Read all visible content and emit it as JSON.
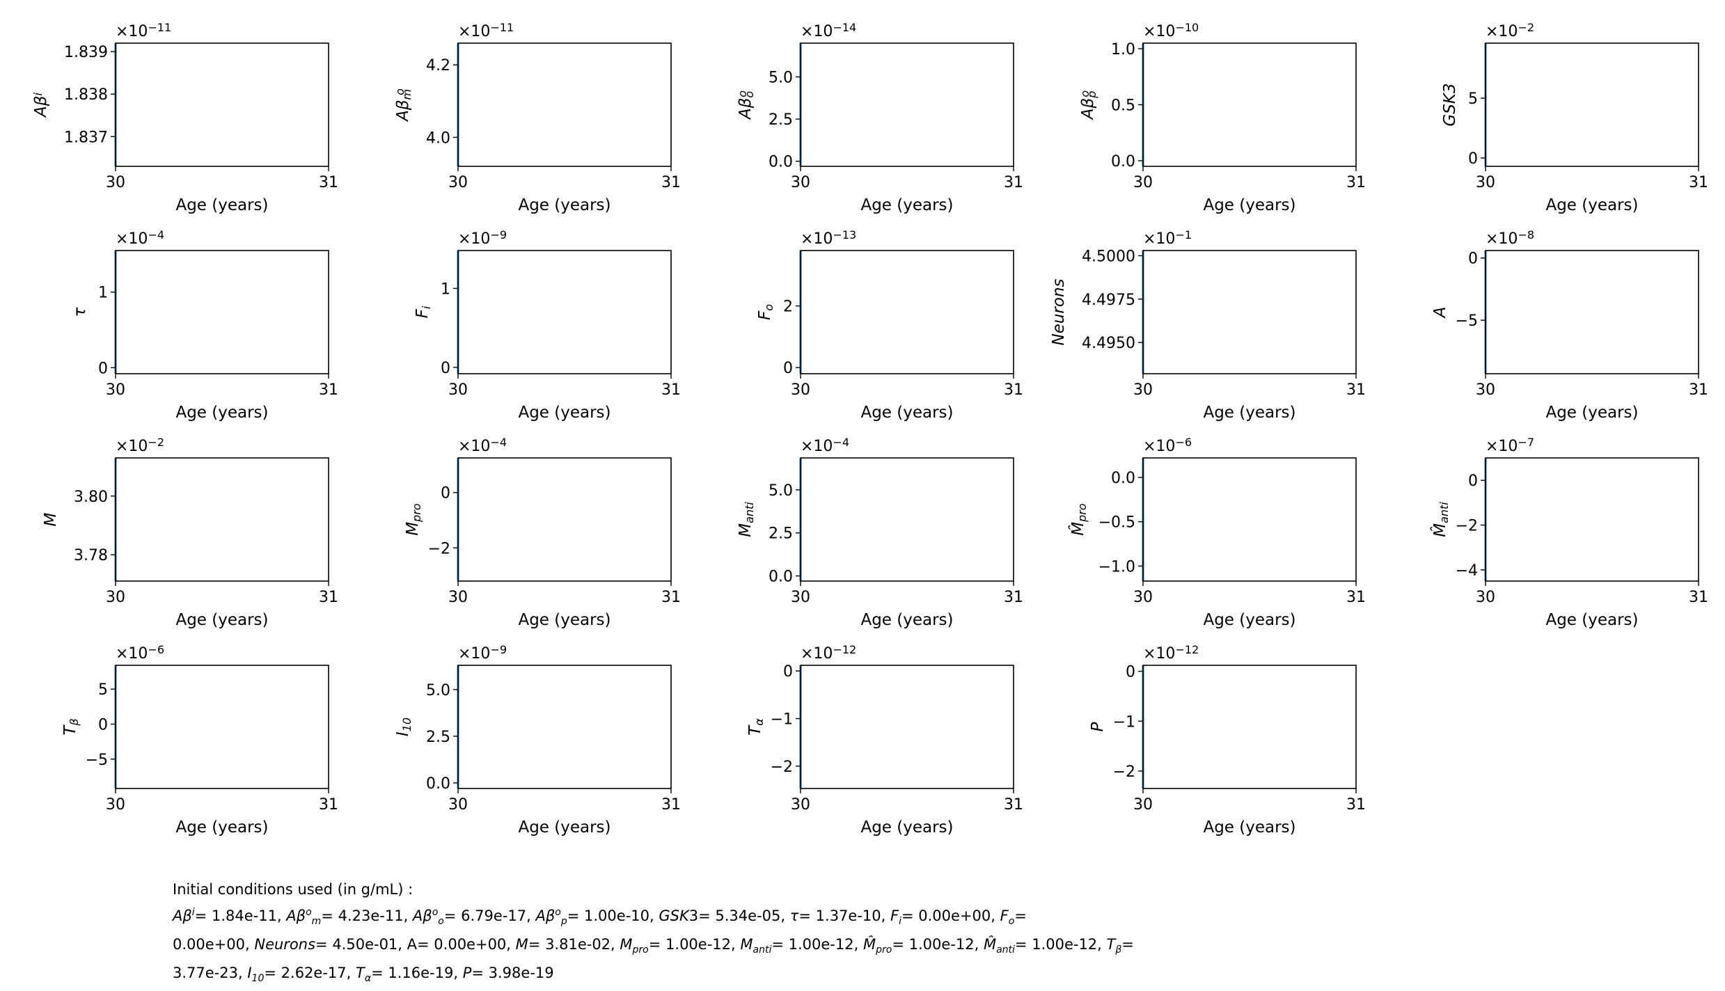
{
  "chart_data": [
    {
      "type": "line",
      "ylabel": "Aβ^i",
      "exponent": "−11",
      "xlim": [
        30,
        31
      ],
      "ylim": [
        1.8363,
        1.8392
      ],
      "xticks": [
        "30",
        "31"
      ],
      "yticks": [
        {
          "value": 1.837,
          "label": "1.837"
        },
        {
          "value": 1.838,
          "label": "1.838"
        },
        {
          "value": 1.839,
          "label": "1.839"
        }
      ],
      "xlabel": "Age (years)",
      "x": [
        30,
        30
      ],
      "y": [
        1.8363,
        1.8392
      ]
    },
    {
      "type": "line",
      "ylabel": "Aβ_m^o",
      "exponent": "−11",
      "xlim": [
        30,
        31
      ],
      "ylim": [
        3.92,
        4.26
      ],
      "xticks": [
        "30",
        "31"
      ],
      "yticks": [
        {
          "value": 4.0,
          "label": "4.0"
        },
        {
          "value": 4.2,
          "label": "4.2"
        }
      ],
      "xlabel": "Age (years)",
      "x": [
        30,
        30
      ],
      "y": [
        3.92,
        4.26
      ]
    },
    {
      "type": "line",
      "ylabel": "Aβ_o^o",
      "exponent": "−14",
      "xlim": [
        30,
        31
      ],
      "ylim": [
        -0.3,
        7.0
      ],
      "xticks": [
        "30",
        "31"
      ],
      "yticks": [
        {
          "value": 0,
          "label": "0.0"
        },
        {
          "value": 2.5,
          "label": "2.5"
        },
        {
          "value": 5,
          "label": "5.0"
        }
      ],
      "xlabel": "Age (years)",
      "x": [
        30,
        30
      ],
      "y": [
        -0.3,
        7.0
      ]
    },
    {
      "type": "line",
      "ylabel": "Aβ_p^o",
      "exponent": "−10",
      "xlim": [
        30,
        31
      ],
      "ylim": [
        -0.05,
        1.05
      ],
      "xticks": [
        "30",
        "31"
      ],
      "yticks": [
        {
          "value": 0,
          "label": "0.0"
        },
        {
          "value": 0.5,
          "label": "0.5"
        },
        {
          "value": 1,
          "label": "1.0"
        }
      ],
      "xlabel": "Age (years)",
      "x": [
        30,
        30
      ],
      "y": [
        -0.05,
        1.05
      ]
    },
    {
      "type": "line",
      "ylabel": "GSK3",
      "exponent": "−2",
      "xlim": [
        30,
        31
      ],
      "ylim": [
        -0.7,
        9.6
      ],
      "xticks": [
        "30",
        "31"
      ],
      "yticks": [
        {
          "value": 0,
          "label": "0"
        },
        {
          "value": 5,
          "label": "5"
        }
      ],
      "xlabel": "Age (years)",
      "x": [
        30,
        30
      ],
      "y": [
        -0.7,
        9.6
      ]
    },
    {
      "type": "line",
      "ylabel": "τ",
      "exponent": "−4",
      "xlim": [
        30,
        31
      ],
      "ylim": [
        -0.08,
        1.55
      ],
      "xticks": [
        "30",
        "31"
      ],
      "yticks": [
        {
          "value": 0,
          "label": "0"
        },
        {
          "value": 1,
          "label": "1"
        }
      ],
      "xlabel": "Age (years)",
      "x": [
        30,
        30
      ],
      "y": [
        -0.08,
        1.55
      ]
    },
    {
      "type": "line",
      "ylabel": "F_i",
      "exponent": "−9",
      "xlim": [
        30,
        31
      ],
      "ylim": [
        -0.08,
        1.48
      ],
      "xticks": [
        "30",
        "31"
      ],
      "yticks": [
        {
          "value": 0,
          "label": "0"
        },
        {
          "value": 1,
          "label": "1"
        }
      ],
      "xlabel": "Age (years)",
      "x": [
        30,
        30
      ],
      "y": [
        -0.08,
        1.48
      ]
    },
    {
      "type": "line",
      "ylabel": "F_o",
      "exponent": "−13",
      "xlim": [
        30,
        31
      ],
      "ylim": [
        -0.2,
        3.8
      ],
      "xticks": [
        "30",
        "31"
      ],
      "yticks": [
        {
          "value": 0,
          "label": "0"
        },
        {
          "value": 2,
          "label": "2"
        }
      ],
      "xlabel": "Age (years)",
      "x": [
        30,
        30
      ],
      "y": [
        -0.2,
        3.8
      ]
    },
    {
      "type": "line",
      "ylabel": "Neurons",
      "exponent": "−1",
      "xlim": [
        30,
        31
      ],
      "ylim": [
        4.4932,
        4.5003
      ],
      "xticks": [
        "30",
        "31"
      ],
      "yticks": [
        {
          "value": 4.495,
          "label": "4.4950"
        },
        {
          "value": 4.4975,
          "label": "4.4975"
        },
        {
          "value": 4.5,
          "label": "4.5000"
        }
      ],
      "xlabel": "Age (years)",
      "x": [
        30,
        30
      ],
      "y": [
        4.4932,
        4.5003
      ]
    },
    {
      "type": "line",
      "ylabel": "A",
      "exponent": "−8",
      "xlim": [
        30,
        31
      ],
      "ylim": [
        -9.3,
        0.6
      ],
      "xticks": [
        "30",
        "31"
      ],
      "yticks": [
        {
          "value": -5,
          "label": "−5"
        },
        {
          "value": 0,
          "label": "0"
        }
      ],
      "xlabel": "Age (years)",
      "x": [
        30,
        30
      ],
      "y": [
        -9.3,
        0.6
      ]
    },
    {
      "type": "line",
      "ylabel": "M",
      "exponent": "−2",
      "xlim": [
        30,
        31
      ],
      "ylim": [
        3.771,
        3.813
      ],
      "xticks": [
        "30",
        "31"
      ],
      "yticks": [
        {
          "value": 3.78,
          "label": "3.78"
        },
        {
          "value": 3.8,
          "label": "3.80"
        }
      ],
      "xlabel": "Age (years)",
      "x": [
        30,
        30
      ],
      "y": [
        3.771,
        3.813
      ]
    },
    {
      "type": "line",
      "ylabel": "M_pro",
      "exponent": "−4",
      "xlim": [
        30,
        31
      ],
      "ylim": [
        -3.2,
        1.25
      ],
      "xticks": [
        "30",
        "31"
      ],
      "yticks": [
        {
          "value": -2,
          "label": "−2"
        },
        {
          "value": 0,
          "label": "0"
        }
      ],
      "xlabel": "Age (years)",
      "x": [
        30,
        30
      ],
      "y": [
        -3.2,
        1.25
      ]
    },
    {
      "type": "line",
      "ylabel": "M_anti",
      "exponent": "−4",
      "xlim": [
        30,
        31
      ],
      "ylim": [
        -0.3,
        6.85
      ],
      "xticks": [
        "30",
        "31"
      ],
      "yticks": [
        {
          "value": 0,
          "label": "0.0"
        },
        {
          "value": 2.5,
          "label": "2.5"
        },
        {
          "value": 5,
          "label": "5.0"
        }
      ],
      "xlabel": "Age (years)",
      "x": [
        30,
        30
      ],
      "y": [
        -0.3,
        6.85
      ]
    },
    {
      "type": "line",
      "ylabel": "M̂_pro",
      "exponent": "−6",
      "xlim": [
        30,
        31
      ],
      "ylim": [
        -1.17,
        0.22
      ],
      "xticks": [
        "30",
        "31"
      ],
      "yticks": [
        {
          "value": -1,
          "label": "−1.0"
        },
        {
          "value": -0.5,
          "label": "−0.5"
        },
        {
          "value": 0,
          "label": "0.0"
        }
      ],
      "xlabel": "Age (years)",
      "x": [
        30,
        30
      ],
      "y": [
        -1.17,
        0.22
      ]
    },
    {
      "type": "line",
      "ylabel": "M̂_anti",
      "exponent": "−7",
      "xlim": [
        30,
        31
      ],
      "ylim": [
        -4.5,
        1.0
      ],
      "xticks": [
        "30",
        "31"
      ],
      "yticks": [
        {
          "value": -4,
          "label": "−4"
        },
        {
          "value": -2,
          "label": "−2"
        },
        {
          "value": 0,
          "label": "0"
        }
      ],
      "xlabel": "Age (years)",
      "x": [
        30,
        30
      ],
      "y": [
        -4.5,
        1.0
      ]
    },
    {
      "type": "line",
      "ylabel": "T_β",
      "exponent": "−6",
      "xlim": [
        30,
        31
      ],
      "ylim": [
        -9.2,
        8.4
      ],
      "xticks": [
        "30",
        "31"
      ],
      "yticks": [
        {
          "value": -5,
          "label": "−5"
        },
        {
          "value": 0,
          "label": "0"
        },
        {
          "value": 5,
          "label": "5"
        }
      ],
      "xlabel": "Age (years)",
      "x": [
        30,
        30
      ],
      "y": [
        -9.2,
        8.4
      ]
    },
    {
      "type": "line",
      "ylabel": "I_10",
      "exponent": "−9",
      "xlim": [
        30,
        31
      ],
      "ylim": [
        -0.3,
        6.3
      ],
      "xticks": [
        "30",
        "31"
      ],
      "yticks": [
        {
          "value": 0,
          "label": "0.0"
        },
        {
          "value": 2.5,
          "label": "2.5"
        },
        {
          "value": 5,
          "label": "5.0"
        }
      ],
      "xlabel": "Age (years)",
      "x": [
        30,
        30
      ],
      "y": [
        -0.3,
        6.3
      ]
    },
    {
      "type": "line",
      "ylabel": "T_α",
      "exponent": "−12",
      "xlim": [
        30,
        31
      ],
      "ylim": [
        -2.47,
        0.12
      ],
      "xticks": [
        "30",
        "31"
      ],
      "yticks": [
        {
          "value": -2,
          "label": "−2"
        },
        {
          "value": -1,
          "label": "−1"
        },
        {
          "value": 0,
          "label": "0"
        }
      ],
      "xlabel": "Age (years)",
      "x": [
        30,
        30
      ],
      "y": [
        -2.47,
        0.12
      ]
    },
    {
      "type": "line",
      "ylabel": "P",
      "exponent": "−12",
      "xlim": [
        30,
        31
      ],
      "ylim": [
        -2.35,
        0.12
      ],
      "xticks": [
        "30",
        "31"
      ],
      "yticks": [
        {
          "value": -2,
          "label": "−2"
        },
        {
          "value": -1,
          "label": "−1"
        },
        {
          "value": 0,
          "label": "0"
        }
      ],
      "xlabel": "Age (years)",
      "x": [
        30,
        30
      ],
      "y": [
        -2.35,
        0.12
      ]
    }
  ],
  "footnote": {
    "heading": "Initial conditions used (in g/mL) :",
    "values": {
      "abi": "1.84e-11",
      "abm": "4.23e-11",
      "abo": "6.79e-17",
      "abp": "1.00e-10",
      "gsk3": "5.34e-05",
      "tau": "1.37e-10",
      "fi": "0.00e+00",
      "fo": "0.00e+00",
      "neurons": "4.50e-01",
      "a": "0.00e+00",
      "m": "3.81e-02",
      "mpro": "1.00e-12",
      "manti": "1.00e-12",
      "mhpro": "1.00e-12",
      "mhanti": "1.00e-12",
      "tb": "3.77e-23",
      "i10": "2.62e-17",
      "ta": "1.16e-19",
      "p": "3.98e-19"
    }
  },
  "colors": {
    "line": "#1f77b4",
    "axes": "#000000",
    "background": "#ffffff"
  }
}
